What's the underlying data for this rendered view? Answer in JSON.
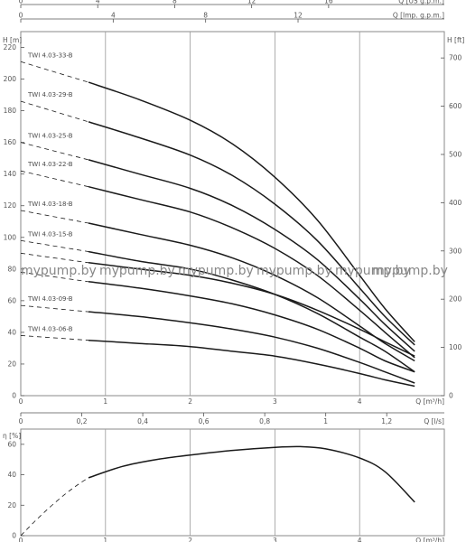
{
  "top_axes": [
    {
      "id": "us",
      "title": "Q [US g.p.m.]",
      "ticks": [
        {
          "label": "0",
          "value": 0
        },
        {
          "label": "4",
          "value": 4
        },
        {
          "label": "8",
          "value": 8
        },
        {
          "label": "12",
          "value": 12
        },
        {
          "label": "16",
          "value": 16
        }
      ]
    },
    {
      "id": "imp",
      "title": "Q [Imp. g.p.m.]",
      "ticks": [
        {
          "label": "0",
          "value": 0
        },
        {
          "label": "4",
          "value": 4
        },
        {
          "label": "8",
          "value": 8
        },
        {
          "label": "12",
          "value": 12
        }
      ]
    }
  ],
  "watermark": "mypump.by",
  "chart_data": [
    {
      "id": "head",
      "type": "line",
      "xlabel": "Q [m³/h]",
      "ylabel_left": "H [m]",
      "ylabel_right": "H [ft]",
      "xlim": [
        0,
        5
      ],
      "ylim": [
        0,
        230
      ],
      "x_ticks": [
        {
          "label": "0",
          "value": 0
        },
        {
          "label": "1",
          "value": 1
        },
        {
          "label": "2",
          "value": 2
        },
        {
          "label": "3",
          "value": 3
        },
        {
          "label": "4",
          "value": 4
        }
      ],
      "y_ticks": [
        {
          "label": "0",
          "value": 0
        },
        {
          "label": "20",
          "value": 20
        },
        {
          "label": "40",
          "value": 40
        },
        {
          "label": "60",
          "value": 60
        },
        {
          "label": "80",
          "value": 80
        },
        {
          "label": "100",
          "value": 100
        },
        {
          "label": "120",
          "value": 120
        },
        {
          "label": "140",
          "value": 140
        },
        {
          "label": "160",
          "value": 160
        },
        {
          "label": "180",
          "value": 180
        },
        {
          "label": "200",
          "value": 200
        },
        {
          "label": "220",
          "value": 220
        }
      ],
      "right_ticks": [
        {
          "label": "0",
          "value": 0
        },
        {
          "label": "100",
          "value": 100
        },
        {
          "label": "200",
          "value": 200
        },
        {
          "label": "300",
          "value": 300
        },
        {
          "label": "400",
          "value": 400
        },
        {
          "label": "500",
          "value": 500
        },
        {
          "label": "600",
          "value": 600
        },
        {
          "label": "700",
          "value": 700
        }
      ],
      "series": [
        {
          "name": "TWI 4.03-33-B",
          "x": [
            0.8,
            1.4,
            2.0,
            2.5,
            3.0,
            3.5,
            4.0,
            4.3,
            4.65
          ],
          "y": [
            198,
            187,
            174,
            159,
            138,
            111,
            76,
            55,
            34
          ]
        },
        {
          "name": "TWI 4.03-29-B",
          "x": [
            0.8,
            1.4,
            2.0,
            2.5,
            3.0,
            3.5,
            4.0,
            4.3,
            4.65
          ],
          "y": [
            173,
            163,
            152,
            139,
            121,
            98,
            68,
            50,
            32
          ]
        },
        {
          "name": "TWI 4.03-25-B",
          "x": [
            0.8,
            1.4,
            2.0,
            2.5,
            3.0,
            3.5,
            4.0,
            4.3,
            4.65
          ],
          "y": [
            149,
            140,
            131,
            120,
            105,
            86,
            61,
            45,
            28
          ]
        },
        {
          "name": "TWI 4.03-22-B",
          "x": [
            0.8,
            1.4,
            2.0,
            2.5,
            3.0,
            3.5,
            4.0,
            4.3,
            4.65
          ],
          "y": [
            132,
            124,
            116,
            106,
            93,
            76,
            54,
            40,
            24
          ]
        },
        {
          "name": "TWI 4.03-18-B",
          "x": [
            0.8,
            1.4,
            2.0,
            2.5,
            3.0,
            3.5,
            4.0,
            4.3,
            4.65
          ],
          "y": [
            109,
            102,
            95,
            87,
            76,
            62,
            44,
            33,
            22
          ]
        },
        {
          "name": "TWI 4.03-15-B",
          "x": [
            0.8,
            1.4,
            2.0,
            2.5,
            3.0,
            3.5,
            4.0,
            4.3,
            4.65
          ],
          "y": [
            91,
            85,
            80,
            73,
            64,
            52,
            37,
            28,
            15
          ]
        },
        {
          "name": "",
          "x": [
            0.8,
            1.4,
            2.0,
            2.5,
            3.0,
            3.5,
            4.0,
            4.3,
            4.65
          ],
          "y": [
            84,
            80,
            76,
            71,
            64,
            54,
            42,
            34,
            25
          ]
        },
        {
          "name": "",
          "x": [
            0.8,
            1.4,
            2.0,
            2.5,
            3.0,
            3.5,
            4.0,
            4.3,
            4.65
          ],
          "y": [
            72,
            68,
            63,
            58,
            51,
            42,
            30,
            22,
            15
          ]
        },
        {
          "name": "TWI 4.03-09-B",
          "x": [
            0.8,
            1.4,
            2.0,
            2.5,
            3.0,
            3.5,
            4.0,
            4.3,
            4.65
          ],
          "y": [
            53,
            50,
            46,
            42,
            37,
            30,
            21,
            15,
            8
          ]
        },
        {
          "name": "TWI 4.03-06-B",
          "x": [
            0.8,
            1.4,
            2.0,
            2.5,
            3.0,
            3.5,
            4.0,
            4.3,
            4.65
          ],
          "y": [
            35,
            33,
            31,
            28,
            25,
            20,
            14,
            10,
            6
          ]
        }
      ],
      "shutoff_head": [
        211,
        186,
        160,
        142,
        117,
        98,
        90,
        78,
        57,
        38
      ]
    },
    {
      "id": "efficiency",
      "type": "line",
      "xlabel": "Q [m³/h]",
      "ylabel": "η [%]",
      "secondary_xlabel": "Q [l/s]",
      "xlim": [
        0,
        5
      ],
      "ylim": [
        0,
        70
      ],
      "x_ticks": [
        {
          "label": "0",
          "value": 0
        },
        {
          "label": "1",
          "value": 1
        },
        {
          "label": "2",
          "value": 2
        },
        {
          "label": "3",
          "value": 3
        },
        {
          "label": "4",
          "value": 4
        }
      ],
      "y_ticks": [
        {
          "label": "0",
          "value": 0
        },
        {
          "label": "20",
          "value": 20
        },
        {
          "label": "40",
          "value": 40
        },
        {
          "label": "60",
          "value": 60
        }
      ],
      "secondary_ticks": [
        {
          "label": "0",
          "value": 0
        },
        {
          "label": "0,2",
          "value": 0.2
        },
        {
          "label": "0,4",
          "value": 0.4
        },
        {
          "label": "0,6",
          "value": 0.6
        },
        {
          "label": "0,8",
          "value": 0.8
        },
        {
          "label": "1",
          "value": 1.0
        },
        {
          "label": "1,2",
          "value": 1.2
        }
      ],
      "series": [
        {
          "x": [
            0.8,
            1.2,
            1.6,
            2.0,
            2.5,
            3.0,
            3.3,
            3.6,
            4.0,
            4.3,
            4.65
          ],
          "y": [
            38,
            45.5,
            50,
            53,
            56,
            58,
            58.5,
            57,
            51,
            42,
            22
          ]
        }
      ],
      "dashed_start": [
        0,
        0
      ]
    }
  ]
}
